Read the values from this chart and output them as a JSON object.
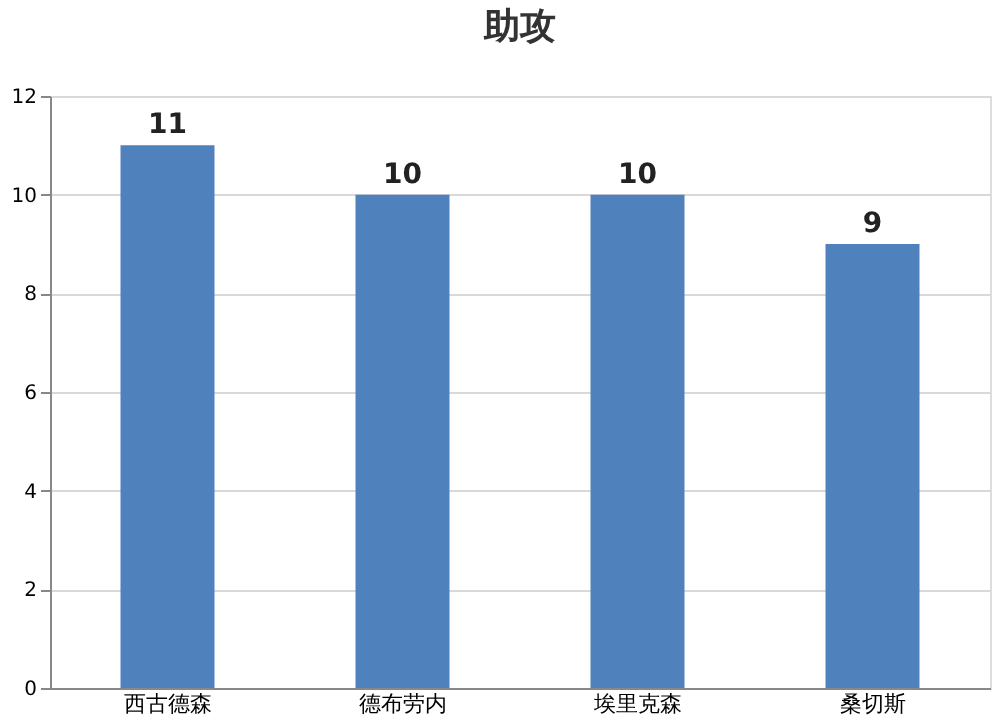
{
  "chart_data": {
    "type": "bar",
    "title": "助攻",
    "categories": [
      "西古德森",
      "德布劳内",
      "埃里克森",
      "桑切斯"
    ],
    "values": [
      11,
      10,
      10,
      9
    ],
    "color": "#4f81bd",
    "ylim": [
      0,
      12
    ],
    "yticks": [
      0,
      2,
      4,
      6,
      8,
      10,
      12
    ],
    "grid": "y",
    "data_labels": true
  }
}
